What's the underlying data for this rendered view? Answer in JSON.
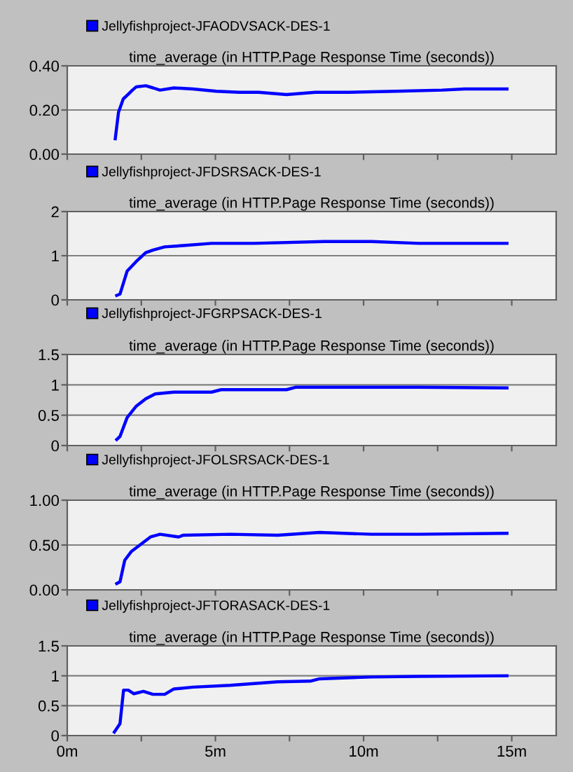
{
  "chart_data": [
    {
      "type": "line",
      "title": "time_average (in HTTP.Page Response Time (seconds))",
      "xlim": [
        0,
        16.5
      ],
      "xticks": [
        {
          "value": 0,
          "label": null
        },
        {
          "value": 2.5,
          "label": null
        },
        {
          "value": 5,
          "label": null
        },
        {
          "value": 7.5,
          "label": null
        },
        {
          "value": 10,
          "label": null
        },
        {
          "value": 12.5,
          "label": null
        },
        {
          "value": 15,
          "label": null
        }
      ],
      "ylim": [
        0,
        0.4
      ],
      "yticks": [
        {
          "value": 0,
          "label": "0.00"
        },
        {
          "value": 0.2,
          "label": "0.20"
        },
        {
          "value": 0.4,
          "label": "0.40"
        }
      ],
      "grid": "y",
      "legend": "top left",
      "tick_labels": "y",
      "series": [
        {
          "name": "Jellyfishproject-JFAODVSACK-DES-1",
          "color": "#0000ff",
          "x": [
            1.62,
            1.73,
            1.89,
            2.05,
            2.2,
            2.33,
            2.65,
            2.9,
            3.13,
            3.6,
            4.24,
            5.03,
            5.8,
            6.46,
            7.4,
            8.37,
            9.5,
            11.1,
            12.65,
            13.4,
            14.84
          ],
          "values": [
            0.07,
            0.19,
            0.25,
            0.27,
            0.29,
            0.305,
            0.31,
            0.3,
            0.29,
            0.3,
            0.295,
            0.285,
            0.28,
            0.28,
            0.27,
            0.28,
            0.28,
            0.285,
            0.29,
            0.295,
            0.295
          ]
        }
      ]
    },
    {
      "type": "line",
      "title": "time_average (in HTTP.Page Response Time (seconds))",
      "xlim": [
        0,
        16.5
      ],
      "xticks": [
        {
          "value": 0,
          "label": null
        },
        {
          "value": 2.5,
          "label": null
        },
        {
          "value": 5,
          "label": null
        },
        {
          "value": 7.5,
          "label": null
        },
        {
          "value": 10,
          "label": null
        },
        {
          "value": 12.5,
          "label": null
        },
        {
          "value": 15,
          "label": null
        }
      ],
      "ylim": [
        0,
        2
      ],
      "yticks": [
        0,
        1,
        2
      ],
      "grid": "y",
      "legend": "top left",
      "tick_labels": "y",
      "series": [
        {
          "name": "Jellyfishproject-JFDSRSACK-DES-1",
          "color": "#0000ff",
          "x": [
            1.67,
            1.78,
            2.02,
            2.33,
            2.65,
            2.9,
            3.29,
            3.92,
            4.87,
            6.3,
            8.68,
            10.27,
            11.86,
            14.84
          ],
          "values": [
            0.1,
            0.13,
            0.65,
            0.87,
            1.07,
            1.13,
            1.2,
            1.23,
            1.28,
            1.28,
            1.32,
            1.32,
            1.28,
            1.28
          ]
        }
      ]
    },
    {
      "type": "line",
      "title": "time_average (in HTTP.Page Response Time (seconds))",
      "xlim": [
        0,
        16.5
      ],
      "xticks": [
        {
          "value": 0,
          "label": null
        },
        {
          "value": 2.5,
          "label": null
        },
        {
          "value": 5,
          "label": null
        },
        {
          "value": 7.5,
          "label": null
        },
        {
          "value": 10,
          "label": null
        },
        {
          "value": 12.5,
          "label": null
        },
        {
          "value": 15,
          "label": null
        }
      ],
      "ylim": [
        0,
        1.5
      ],
      "yticks": [
        0,
        0.5,
        1,
        1.5
      ],
      "grid": "y",
      "legend": "top left",
      "tick_labels": "y",
      "series": [
        {
          "name": "Jellyfishproject-JFGRPSACK-DES-1",
          "color": "#0000ff",
          "x": [
            1.67,
            1.78,
            2.02,
            2.33,
            2.65,
            2.97,
            3.6,
            4.24,
            4.87,
            5.19,
            7.4,
            7.7,
            9.5,
            11.86,
            14.84
          ],
          "values": [
            0.1,
            0.15,
            0.46,
            0.65,
            0.77,
            0.85,
            0.88,
            0.88,
            0.88,
            0.92,
            0.92,
            0.96,
            0.96,
            0.96,
            0.95
          ]
        }
      ]
    },
    {
      "type": "line",
      "title": "time_average (in HTTP.Page Response Time (seconds))",
      "xlim": [
        0,
        16.5
      ],
      "xticks": [
        {
          "value": 0,
          "label": null
        },
        {
          "value": 2.5,
          "label": null
        },
        {
          "value": 5,
          "label": null
        },
        {
          "value": 7.5,
          "label": null
        },
        {
          "value": 10,
          "label": null
        },
        {
          "value": 12.5,
          "label": null
        },
        {
          "value": 15,
          "label": null
        }
      ],
      "ylim": [
        0,
        1
      ],
      "yticks": [
        {
          "value": 0,
          "label": "0.00"
        },
        {
          "value": 0.5,
          "label": "0.50"
        },
        {
          "value": 1,
          "label": "1.00"
        }
      ],
      "grid": "y",
      "legend": "top left",
      "tick_labels": "y",
      "series": [
        {
          "name": "Jellyfishproject-JFOLSRSACK-DES-1",
          "color": "#0000ff",
          "x": [
            1.67,
            1.78,
            1.94,
            2.17,
            2.49,
            2.81,
            3.13,
            3.76,
            3.92,
            5.5,
            7.1,
            8.52,
            10.27,
            11.86,
            14.84
          ],
          "values": [
            0.07,
            0.09,
            0.33,
            0.43,
            0.51,
            0.59,
            0.62,
            0.59,
            0.61,
            0.62,
            0.61,
            0.64,
            0.62,
            0.62,
            0.63
          ]
        }
      ]
    },
    {
      "type": "line",
      "title": "time_average (in HTTP.Page Response Time (seconds))",
      "xlim": [
        0,
        16.5
      ],
      "xticks": [
        {
          "value": 0,
          "label": "0m"
        },
        {
          "value": 2.5,
          "label": null
        },
        {
          "value": 5,
          "label": "5m"
        },
        {
          "value": 7.5,
          "label": null
        },
        {
          "value": 10,
          "label": "10m"
        },
        {
          "value": 12.5,
          "label": null
        },
        {
          "value": 15,
          "label": "15m"
        }
      ],
      "ylim": [
        0,
        1.5
      ],
      "yticks": [
        0,
        0.5,
        1,
        1.5
      ],
      "grid": "y",
      "legend": "top left",
      "series": [
        {
          "name": "Jellyfishproject-JFTORASACK-DES-1",
          "color": "#0000ff",
          "x": [
            1.59,
            1.78,
            1.9,
            2.06,
            2.25,
            2.57,
            2.89,
            3.29,
            3.6,
            4.24,
            5.5,
            7.1,
            8.2,
            8.52,
            10.27,
            11.86,
            14.84
          ],
          "values": [
            0.06,
            0.2,
            0.76,
            0.76,
            0.7,
            0.74,
            0.69,
            0.69,
            0.78,
            0.81,
            0.84,
            0.9,
            0.91,
            0.95,
            0.98,
            0.99,
            1.0
          ]
        }
      ]
    }
  ]
}
